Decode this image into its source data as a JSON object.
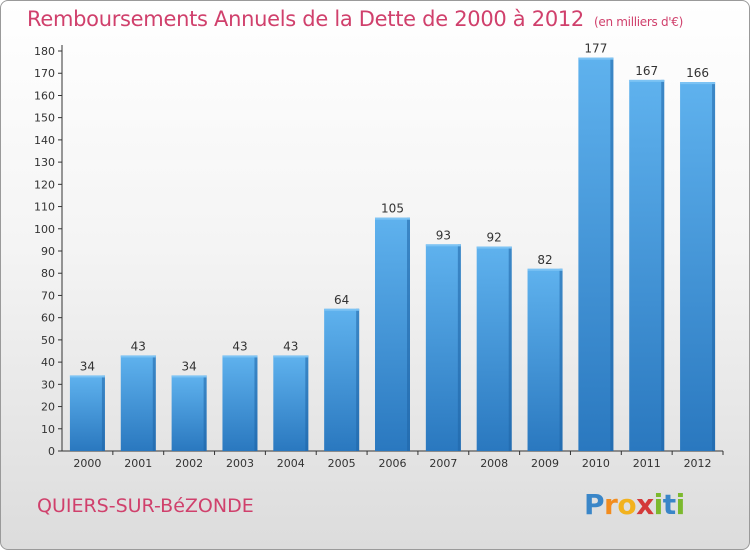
{
  "title": "Remboursements Annuels de la Dette de 2000 à 2012",
  "unit_note": "(en milliers d'€)",
  "commune": "QUIERS-SUR-BéZONDE",
  "logo": {
    "letters": [
      "P",
      "r",
      "o",
      "x",
      "i",
      "t",
      "i"
    ],
    "colors": [
      "#3a86c8",
      "#f28c1e",
      "#f2b21e",
      "#d43a3a",
      "#7cb92e",
      "#3a86c8",
      "#7cb92e"
    ]
  },
  "colors": {
    "bar": "#4ea5e6",
    "bar_dark": "#2a78bf",
    "text_accent": "#d0406c"
  },
  "chart_data": {
    "type": "bar",
    "title": "Remboursements Annuels de la Dette de 2000 à 2012",
    "xlabel": "",
    "ylabel": "",
    "categories": [
      "2000",
      "2001",
      "2002",
      "2003",
      "2004",
      "2005",
      "2006",
      "2007",
      "2008",
      "2009",
      "2010",
      "2011",
      "2012"
    ],
    "values": [
      34,
      43,
      34,
      43,
      43,
      64,
      105,
      93,
      92,
      82,
      177,
      167,
      166
    ],
    "ylim": [
      0,
      180
    ],
    "yticks": [
      0,
      10,
      20,
      30,
      40,
      50,
      60,
      70,
      80,
      90,
      100,
      110,
      120,
      130,
      140,
      150,
      160,
      170,
      180
    ],
    "grid": false,
    "legend": "none"
  }
}
